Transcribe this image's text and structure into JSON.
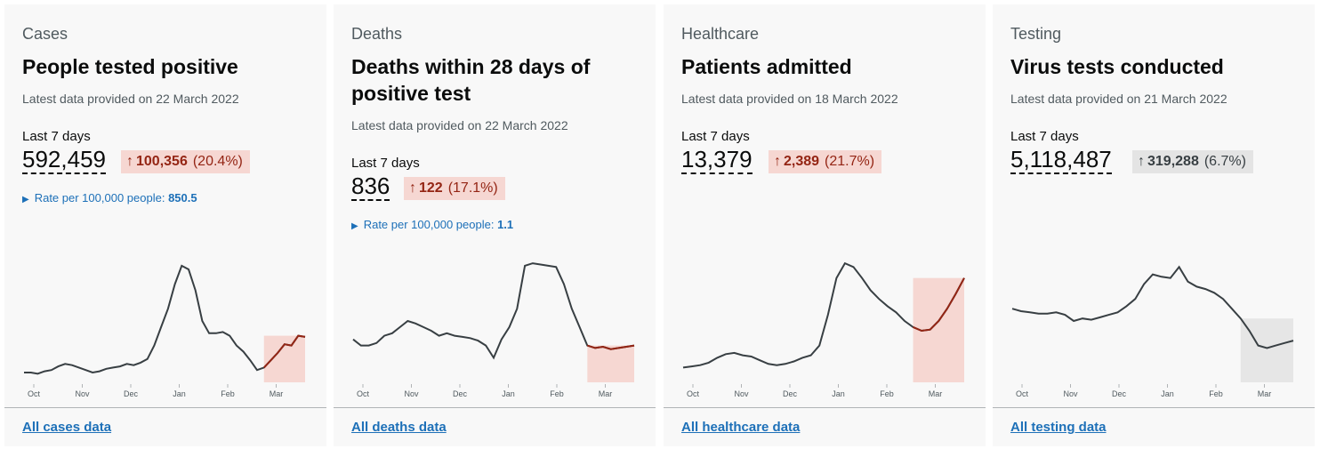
{
  "months": [
    "Oct",
    "Nov",
    "Dec",
    "Jan",
    "Feb",
    "Mar"
  ],
  "colors": {
    "up_line": "#942514",
    "up_fill": "#f6d7d2",
    "neutral_fill": "#e6e6e6",
    "line": "#383f43"
  },
  "cards": [
    {
      "category": "Cases",
      "title": "People tested positive",
      "updated": "Latest data provided on 22 March 2022",
      "period": "Last 7 days",
      "value": "592,459",
      "change_arrow": "↑",
      "change_delta": "100,356",
      "change_pct": "(20.4%)",
      "direction": "up",
      "rate_label": "Rate per 100,000 people:",
      "rate_value": "850.5",
      "link": "All cases data",
      "series": [
        8,
        8,
        7,
        9,
        10,
        13,
        15,
        14,
        12,
        10,
        8,
        9,
        11,
        12,
        13,
        15,
        14,
        16,
        19,
        30,
        45,
        60,
        80,
        95,
        92,
        75,
        50,
        40,
        40,
        41,
        38,
        30,
        25,
        18,
        10,
        12,
        18,
        24,
        31,
        30,
        38,
        37
      ]
    },
    {
      "category": "Deaths",
      "title": "Deaths within 28 days of positive test",
      "updated": "Latest data provided on 22 March 2022",
      "period": "Last 7 days",
      "value": "836",
      "change_arrow": "↑",
      "change_delta": "122",
      "change_pct": "(17.1%)",
      "direction": "up",
      "rate_label": "Rate per 100,000 people:",
      "rate_value": "1.1",
      "link": "All deaths data",
      "series": [
        35,
        30,
        30,
        32,
        38,
        40,
        45,
        50,
        48,
        45,
        42,
        38,
        40,
        38,
        37,
        36,
        34,
        30,
        20,
        35,
        45,
        60,
        95,
        97,
        96,
        95,
        94,
        80,
        60,
        45,
        30,
        28,
        29,
        27,
        28,
        29,
        30
      ]
    },
    {
      "category": "Healthcare",
      "title": "Patients admitted",
      "updated": "Latest data provided on 18 March 2022",
      "period": "Last 7 days",
      "value": "13,379",
      "change_arrow": "↑",
      "change_delta": "2,389",
      "change_pct": "(21.7%)",
      "direction": "up",
      "rate_label": "",
      "rate_value": "",
      "link": "All healthcare data",
      "series": [
        12,
        13,
        14,
        16,
        20,
        23,
        24,
        22,
        21,
        18,
        15,
        14,
        15,
        17,
        20,
        22,
        30,
        55,
        85,
        97,
        94,
        85,
        75,
        68,
        62,
        57,
        50,
        45,
        42,
        43,
        50,
        60,
        72,
        85
      ]
    },
    {
      "category": "Testing",
      "title": "Virus tests conducted",
      "updated": "Latest data provided on 21 March 2022",
      "period": "Last 7 days",
      "value": "5,118,487",
      "change_arrow": "↑",
      "change_delta": "319,288",
      "change_pct": "(6.7%)",
      "direction": "neutral",
      "rate_label": "",
      "rate_value": "",
      "link": "All testing data",
      "series": [
        60,
        58,
        57,
        56,
        56,
        57,
        55,
        50,
        52,
        51,
        53,
        55,
        57,
        62,
        68,
        80,
        88,
        86,
        85,
        94,
        82,
        78,
        76,
        73,
        68,
        60,
        52,
        42,
        30,
        28,
        30,
        32,
        34
      ]
    }
  ]
}
